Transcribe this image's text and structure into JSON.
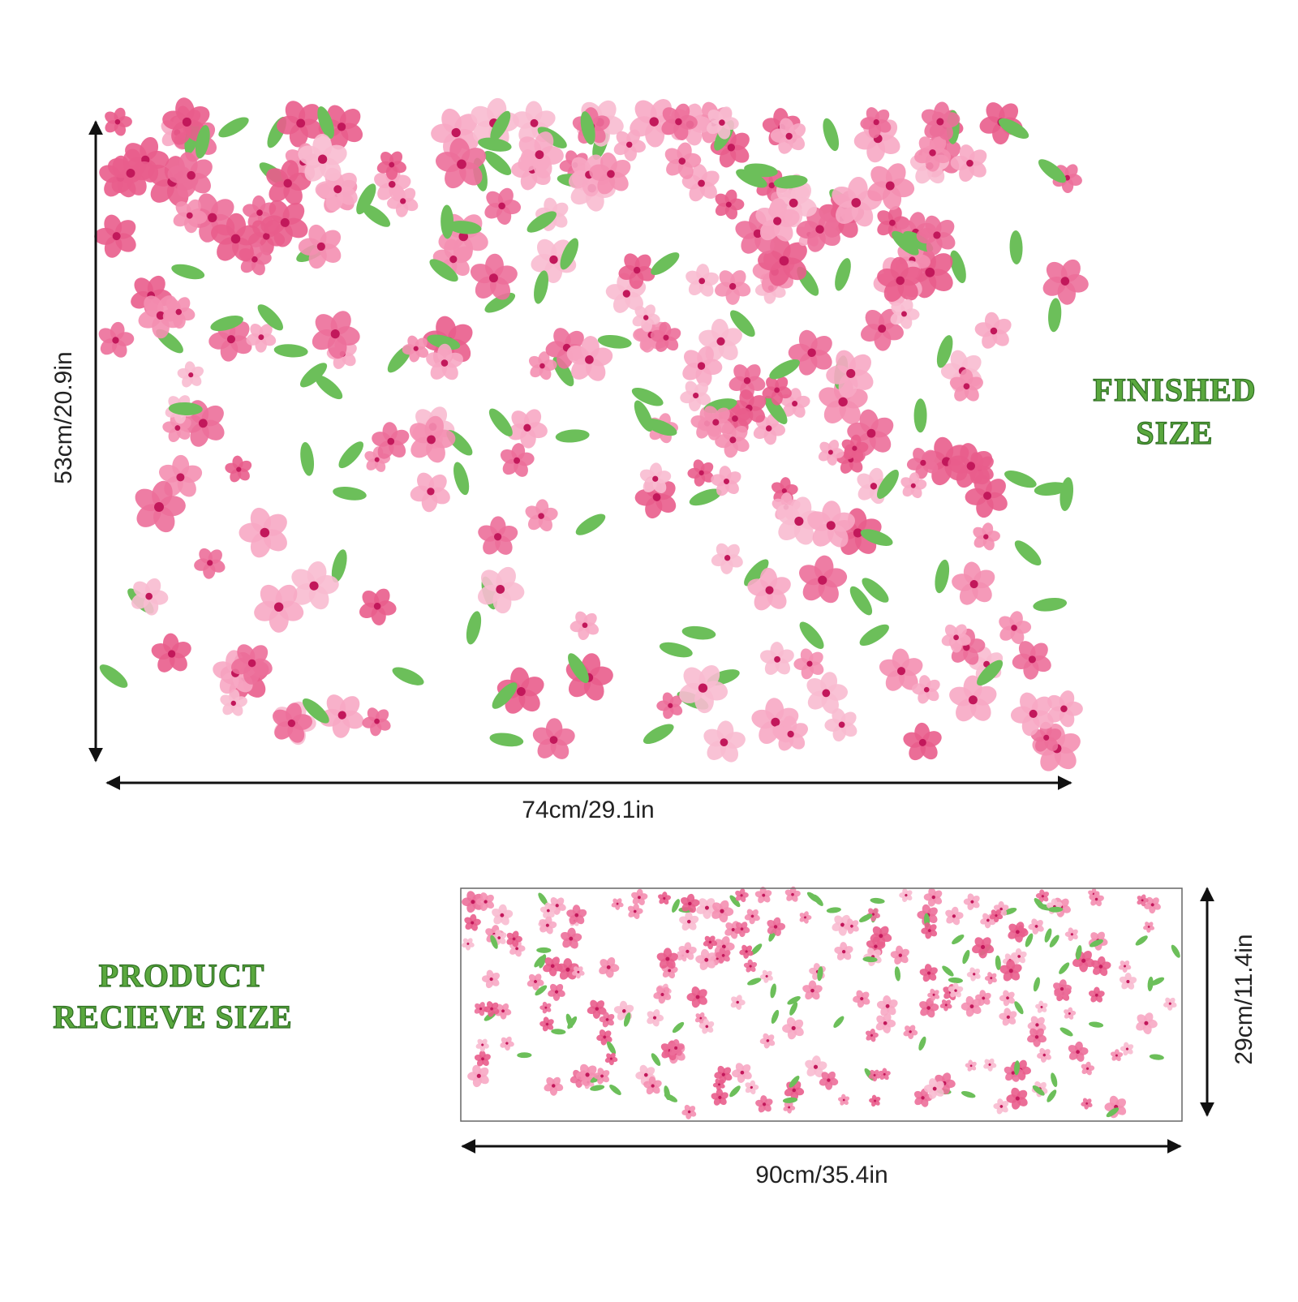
{
  "finished": {
    "label": [
      "FINISHED",
      "SIZE"
    ],
    "height": "53cm/20.9in",
    "width": "74cm/29.1in"
  },
  "received": {
    "label": [
      "PRODUCT",
      "RECIEVE SIZE"
    ],
    "height": "29cm/11.4in",
    "width": "90cm/35.4in"
  }
}
